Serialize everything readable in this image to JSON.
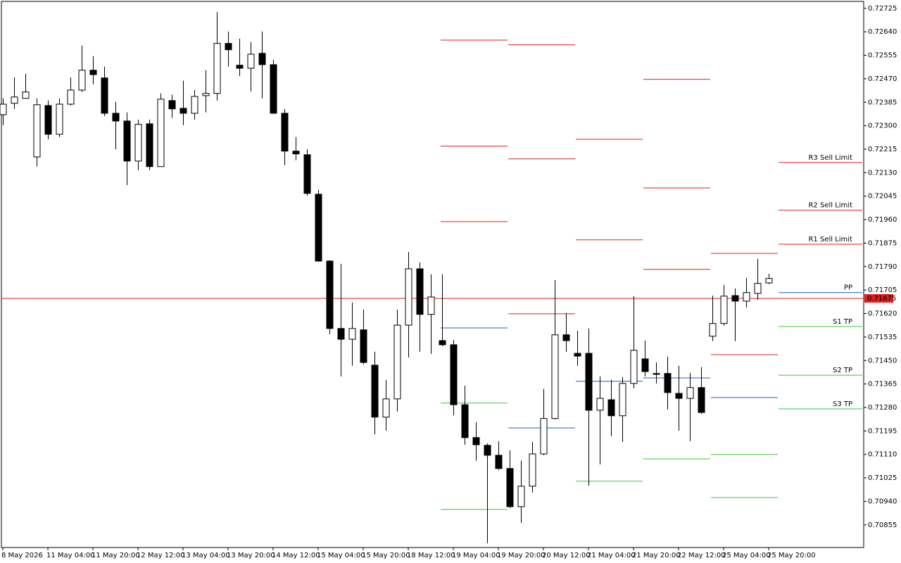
{
  "chart_data": {
    "type": "candlestick",
    "categories": [
      "8 May 2026",
      null,
      null,
      null,
      "11 May 04:00",
      null,
      null,
      null,
      "11 May 20:00",
      null,
      null,
      null,
      "12 May 12:00",
      null,
      null,
      null,
      "13 May 04:00",
      null,
      null,
      null,
      "13 May 20:00",
      null,
      null,
      null,
      "14 May 12:00",
      null,
      null,
      null,
      "15 May 04:00",
      null,
      null,
      null,
      "15 May 20:00",
      null,
      null,
      null,
      "18 May 12:00",
      null,
      null,
      null,
      "19 May 04:00",
      null,
      null,
      null,
      "19 May 20:00",
      null,
      null,
      null,
      "20 May 12:00",
      null,
      null,
      null,
      "21 May 04:00",
      null,
      null,
      null,
      "21 May 20:00",
      null,
      null,
      null,
      "22 May 12:00",
      null,
      null,
      null,
      "25 May 04:00",
      null,
      null,
      null,
      "25 May 20:00"
    ],
    "open": [
      0.7234,
      0.72381,
      0.72399,
      0.72187,
      0.72373,
      0.72269,
      0.72378,
      0.72429,
      0.72501,
      0.72473,
      0.72345,
      0.72317,
      0.72172,
      0.72307,
      0.72152,
      0.72391,
      0.72363,
      0.72345,
      0.72409,
      0.72417,
      0.72598,
      0.72519,
      0.72508,
      0.72562,
      0.72521,
      0.72345,
      0.72208,
      0.72195,
      0.72052,
      0.7181,
      0.71566,
      0.71527,
      0.71561,
      0.71433,
      0.71245,
      0.71311,
      0.71578,
      0.71782,
      0.71617,
      0.71522,
      0.71507,
      0.7129,
      0.71171,
      0.71143,
      0.71107,
      0.71059,
      0.70921,
      0.70995,
      0.71112,
      0.7124,
      0.71543,
      0.71476,
      0.71476,
      0.7127,
      0.71308,
      0.7125,
      0.71367,
      0.71456,
      0.71403,
      0.71403,
      0.71331,
      0.71313,
      0.71352,
      0.71538,
      0.71584,
      0.71685,
      0.71665,
      0.71693,
      0.71731
    ],
    "high": [
      0.72399,
      0.72475,
      0.72488,
      0.72399,
      0.72391,
      0.72399,
      0.72475,
      0.7259,
      0.72552,
      0.72514,
      0.72386,
      0.72348,
      0.72322,
      0.72322,
      0.72417,
      0.72412,
      0.72463,
      0.72429,
      0.72501,
      0.72712,
      0.72641,
      0.72615,
      0.72603,
      0.72641,
      0.72539,
      0.72361,
      0.72259,
      0.72215,
      0.72068,
      0.71813,
      0.718,
      0.7166,
      0.71634,
      0.71482,
      0.7138,
      0.71634,
      0.71843,
      0.71805,
      0.71762,
      0.71762,
      0.71525,
      0.71359,
      0.71227,
      0.7115,
      0.71158,
      0.71125,
      0.71087,
      0.71155,
      0.71347,
      0.71741,
      0.71622,
      0.71558,
      0.71566,
      0.71392,
      0.7138,
      0.7139,
      0.71683,
      0.71522,
      0.71443,
      0.71464,
      0.71431,
      0.71405,
      0.71426,
      0.71685,
      0.71724,
      0.71711,
      0.71749,
      0.71818,
      0.71764
    ],
    "low": [
      0.72302,
      0.72361,
      0.72399,
      0.72152,
      0.72251,
      0.72259,
      0.72373,
      0.72422,
      0.7245,
      0.72335,
      0.72215,
      0.72085,
      0.72139,
      0.72139,
      0.72152,
      0.72328,
      0.72302,
      0.72322,
      0.72348,
      0.72391,
      0.72514,
      0.7248,
      0.72424,
      0.72399,
      0.72343,
      0.72157,
      0.72175,
      0.72047,
      0.71808,
      0.71545,
      0.71392,
      0.71431,
      0.71436,
      0.71183,
      0.71196,
      0.71265,
      0.71461,
      0.71482,
      0.71474,
      0.71502,
      0.71252,
      0.71145,
      0.71087,
      0.70789,
      0.71054,
      0.70916,
      0.70862,
      0.70972,
      0.71107,
      0.71237,
      0.71482,
      0.71431,
      0.70997,
      0.71074,
      0.71176,
      0.71155,
      0.71349,
      0.71392,
      0.71367,
      0.71273,
      0.71196,
      0.71158,
      0.71257,
      0.7152,
      0.71576,
      0.7152,
      0.71642,
      0.7167,
      0.71726
    ],
    "close": [
      0.72378,
      0.72404,
      0.72422,
      0.72376,
      0.72269,
      0.72378,
      0.72429,
      0.72501,
      0.72485,
      0.72345,
      0.72317,
      0.72172,
      0.72305,
      0.72152,
      0.72396,
      0.72361,
      0.72345,
      0.72406,
      0.72417,
      0.72598,
      0.72575,
      0.72508,
      0.72559,
      0.72521,
      0.72345,
      0.72208,
      0.72198,
      0.72055,
      0.7181,
      0.71566,
      0.71527,
      0.71566,
      0.71443,
      0.71245,
      0.71311,
      0.71578,
      0.71782,
      0.71617,
      0.7168,
      0.71507,
      0.7129,
      0.71171,
      0.71145,
      0.71107,
      0.71059,
      0.70921,
      0.70995,
      0.71112,
      0.7124,
      0.71543,
      0.71522,
      0.71466,
      0.7127,
      0.71313,
      0.7125,
      0.71367,
      0.71487,
      0.7141,
      0.714,
      0.71334,
      0.71313,
      0.71352,
      0.71262,
      0.71584,
      0.71683,
      0.71665,
      0.71696,
      0.71729,
      0.71747
    ],
    "up_color": "#ffffff",
    "down_color": "#000000",
    "ylim": [
      0.70773,
      0.7275
    ],
    "yticks": [
      {
        "value": 0.72725,
        "label": "0.72725"
      },
      {
        "value": 0.7264,
        "label": "0.72640"
      },
      {
        "value": 0.72555,
        "label": "0.72555"
      },
      {
        "value": 0.7247,
        "label": "0.72470"
      },
      {
        "value": 0.72385,
        "label": "0.72385"
      },
      {
        "value": 0.723,
        "label": "0.72300"
      },
      {
        "value": 0.72215,
        "label": "0.72215"
      },
      {
        "value": 0.7213,
        "label": "0.72130"
      },
      {
        "value": 0.72045,
        "label": "0.72045"
      },
      {
        "value": 0.7196,
        "label": "0.71960"
      },
      {
        "value": 0.71875,
        "label": "0.71875"
      },
      {
        "value": 0.7179,
        "label": "0.71790"
      },
      {
        "value": 0.71705,
        "label": "0.71705"
      },
      {
        "value": 0.7162,
        "label": "0.71620"
      },
      {
        "value": 0.71535,
        "label": "0.71535"
      },
      {
        "value": 0.7145,
        "label": "0.71450"
      },
      {
        "value": 0.71365,
        "label": "0.71365"
      },
      {
        "value": 0.7128,
        "label": "0.71280"
      },
      {
        "value": 0.71195,
        "label": "0.71195"
      },
      {
        "value": 0.7111,
        "label": "0.71110"
      },
      {
        "value": 0.71025,
        "label": "0.71025"
      },
      {
        "value": 0.7094,
        "label": "0.70940"
      },
      {
        "value": 0.70855,
        "label": "0.70855"
      }
    ],
    "pivot_levels": {
      "labels": [
        "R3 Sell Limit",
        "R2 Sell Limit",
        "R1 Sell Limit",
        "PP",
        "S1 TP",
        "S2 TP",
        "S3 TP"
      ],
      "colors": [
        "#e01e1e",
        "#e01e1e",
        "#e01e1e",
        "#1f5fbf",
        "#3cc43c",
        "#3cc43c",
        "#3cc43c"
      ],
      "periods": [
        [
          0.7261,
          0.72226,
          0.71953,
          0.71568,
          0.71296,
          0.70911,
          null
        ],
        [
          0.72593,
          0.7218,
          0.71619,
          0.71206,
          null,
          null,
          null
        ],
        [
          null,
          0.72251,
          0.71887,
          0.71375,
          0.71013,
          null,
          null
        ],
        [
          0.72468,
          0.72075,
          0.7178,
          0.71387,
          0.71094,
          null,
          null
        ],
        [
          null,
          0.71838,
          0.71471,
          0.71316,
          0.7111,
          0.70954,
          null
        ],
        [
          0.72167,
          0.71994,
          0.71871,
          0.71696,
          0.71573,
          0.71397,
          0.71275
        ]
      ]
    },
    "current_price": 0.71675,
    "current_price_color": "#e01e1e"
  }
}
